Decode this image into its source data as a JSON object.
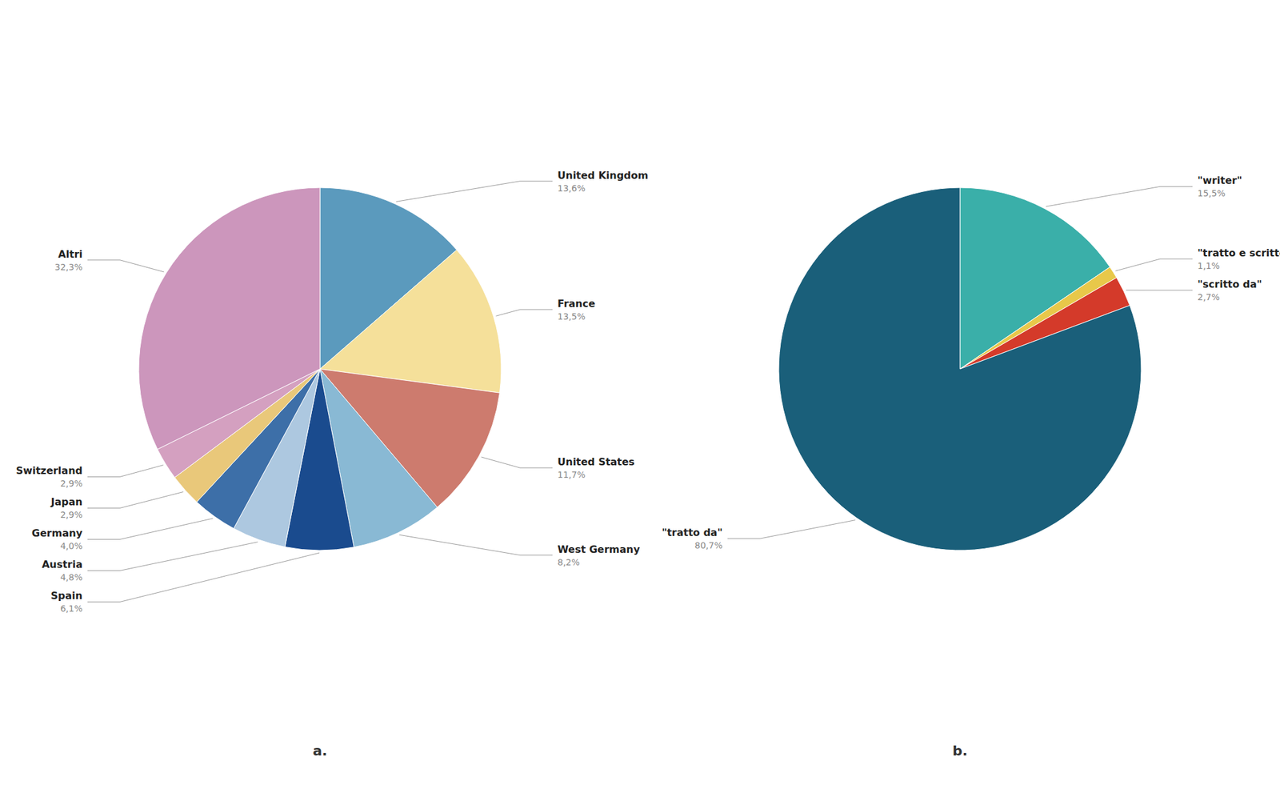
{
  "chart_data": [
    {
      "type": "pie",
      "title": "a.",
      "categories": [
        "United Kingdom",
        "France",
        "United States",
        "West Germany",
        "Spain",
        "Austria",
        "Germany",
        "Japan",
        "Switzerland",
        "Altri"
      ],
      "values": [
        13.6,
        13.5,
        11.7,
        8.2,
        6.1,
        4.8,
        4.0,
        2.9,
        2.9,
        32.3
      ],
      "value_labels": [
        "13,6%",
        "13,5%",
        "11,7%",
        "8,2%",
        "6,1%",
        "4,8%",
        "4,0%",
        "2,9%",
        "2,9%",
        "32,3%"
      ],
      "colors": [
        "#5b9abd",
        "#f5e09a",
        "#cd7b6e",
        "#89b9d4",
        "#1a4b8e",
        "#adc8e0",
        "#3d6fa8",
        "#e9c87a",
        "#d4a0c0",
        "#cc96bc"
      ],
      "data_labels": true
    },
    {
      "type": "pie",
      "title": "b.",
      "categories": [
        "\"writer\"",
        "\"tratto e scritto\"",
        "\"scritto da\"",
        "\"tratto da\""
      ],
      "values": [
        15.5,
        1.1,
        2.7,
        80.7
      ],
      "value_labels": [
        "15,5%",
        "1,1%",
        "2,7%",
        "80,7%"
      ],
      "colors": [
        "#3aafa9",
        "#e8c84a",
        "#d43a2a",
        "#1a5f7a"
      ],
      "data_labels": true
    }
  ]
}
